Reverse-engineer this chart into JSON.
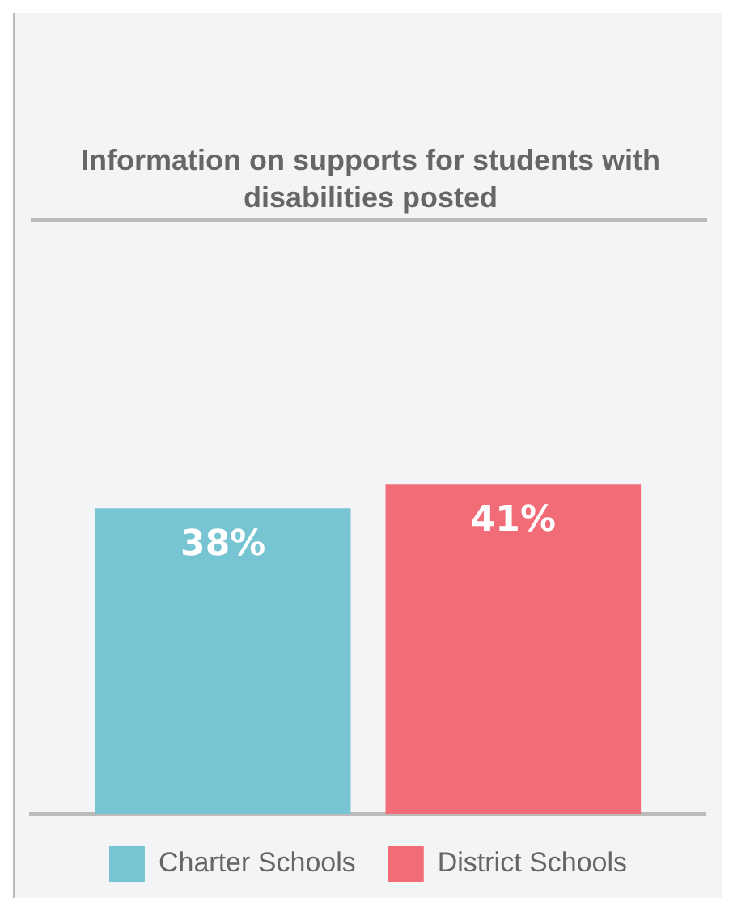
{
  "chart_data": {
    "type": "bar",
    "title": "Information on supports for students with disabilities posted",
    "categories": [
      null
    ],
    "series": [
      {
        "name": "Charter Schools",
        "color": "#77c4d3",
        "values": [
          38
        ],
        "value_labels": [
          "38%"
        ]
      },
      {
        "name": "District Schools",
        "color": "#f26c78",
        "values": [
          41
        ],
        "value_labels": [
          "41%"
        ]
      }
    ],
    "legend": "bottom",
    "grid": false
  }
}
